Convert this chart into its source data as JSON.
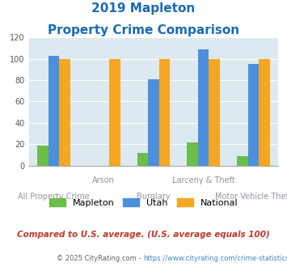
{
  "title_line1": "2019 Mapleton",
  "title_line2": "Property Crime Comparison",
  "categories": [
    "All Property Crime",
    "Arson",
    "Burglary",
    "Larceny & Theft",
    "Motor Vehicle Theft"
  ],
  "x_labels_row1": [
    "",
    "Arson",
    "",
    "Larceny & Theft",
    ""
  ],
  "x_labels_row2": [
    "All Property Crime",
    "",
    "Burglary",
    "",
    "Motor Vehicle Theft"
  ],
  "mapleton": [
    19,
    0,
    12,
    22,
    9
  ],
  "utah": [
    103,
    0,
    81,
    109,
    95
  ],
  "national": [
    100,
    100,
    100,
    100,
    100
  ],
  "color_mapleton": "#6abf4b",
  "color_utah": "#4d8fdc",
  "color_national": "#f5a623",
  "color_title": "#1a6bb5",
  "color_xlabel": "#9b8fa0",
  "color_note": "#c0392b",
  "color_footnote": "#4488cc",
  "color_footnote_prefix": "#555555",
  "bg_plot": "#dce9f0",
  "bg_fig": "#ffffff",
  "ylim": [
    0,
    120
  ],
  "yticks": [
    0,
    20,
    40,
    60,
    80,
    100,
    120
  ],
  "note": "Compared to U.S. average. (U.S. average equals 100)",
  "footnote_prefix": "© 2025 CityRating.com - ",
  "footnote_link": "https://www.cityrating.com/crime-statistics/"
}
